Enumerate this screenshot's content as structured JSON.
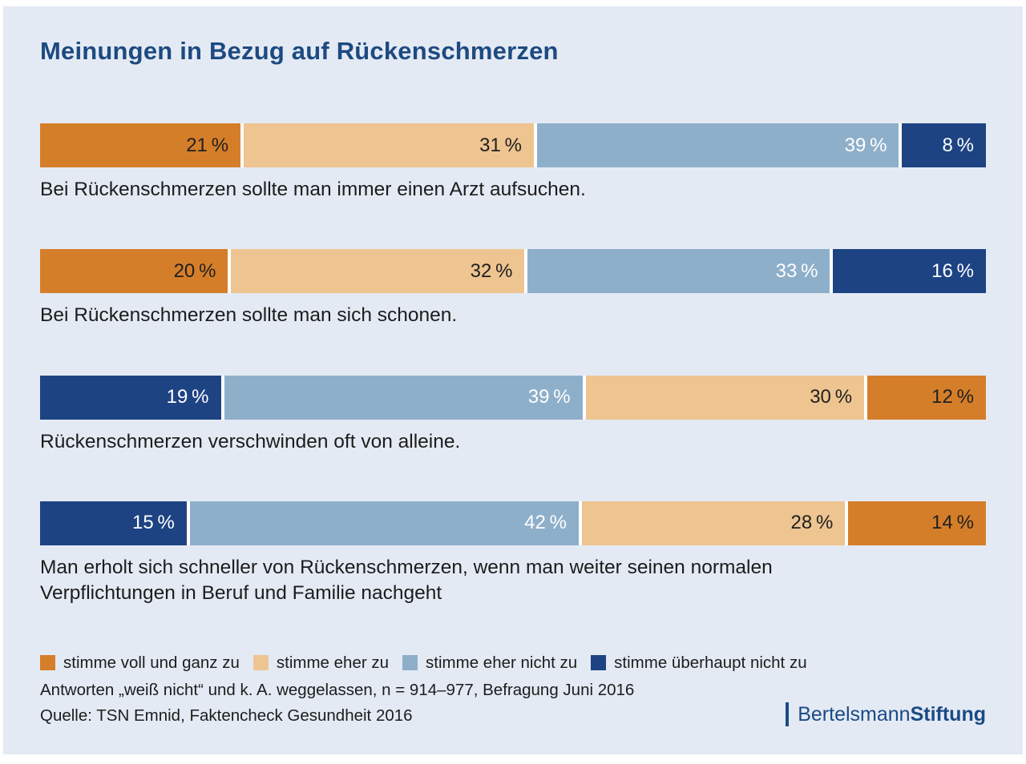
{
  "title": "Meinungen in Bezug auf Rückenschmerzen",
  "colors": {
    "background": "#e4eaf4",
    "page_border": "#ffffff",
    "title_text": "#1d4a80",
    "statement_text": "#1c1c1c",
    "logo_text": "#1b4a84",
    "agree_full": "#d57e29",
    "agree_some": "#eec491",
    "disagree_some": "#8eafca",
    "disagree_full": "#1d4383"
  },
  "chart_data": {
    "type": "bar",
    "variant": "horizontal-stacked-100",
    "unit": "%",
    "title": "Meinungen in Bezug auf Rückenschmerzen",
    "legend_position": "bottom",
    "legend": [
      {
        "label": "stimme voll und ganz zu",
        "color": "#d57e29",
        "value_text_color": "#1f1f1f"
      },
      {
        "label": "stimme eher zu",
        "color": "#eec491",
        "value_text_color": "#1f1f1f"
      },
      {
        "label": "stimme eher nicht zu",
        "color": "#8eafca",
        "value_text_color": "#ffffff"
      },
      {
        "label": "stimme überhaupt nicht zu",
        "color": "#1d4383",
        "value_text_color": "#ffffff"
      }
    ],
    "rows": [
      {
        "statement": "Bei Rückenschmerzen sollte man immer einen Arzt aufsuchen.",
        "segments": [
          {
            "category": "stimme voll und ganz zu",
            "value": 21
          },
          {
            "category": "stimme eher zu",
            "value": 31
          },
          {
            "category": "stimme eher nicht zu",
            "value": 39
          },
          {
            "category": "stimme überhaupt nicht zu",
            "value": 8
          }
        ]
      },
      {
        "statement": "Bei Rückenschmerzen sollte man sich schonen.",
        "segments": [
          {
            "category": "stimme voll und ganz zu",
            "value": 20
          },
          {
            "category": "stimme eher zu",
            "value": 32
          },
          {
            "category": "stimme eher nicht zu",
            "value": 33
          },
          {
            "category": "stimme überhaupt nicht zu",
            "value": 16
          }
        ]
      },
      {
        "statement": "Rückenschmerzen verschwinden oft von alleine.",
        "segments": [
          {
            "category": "stimme überhaupt nicht zu",
            "value": 19
          },
          {
            "category": "stimme eher nicht zu",
            "value": 39
          },
          {
            "category": "stimme eher zu",
            "value": 30
          },
          {
            "category": "stimme voll und ganz zu",
            "value": 12
          }
        ]
      },
      {
        "statement": "Man erholt sich schneller von Rückenschmerzen, wenn man weiter seinen normalen Verpflichtungen in Beruf und Familie nachgeht",
        "segments": [
          {
            "category": "stimme überhaupt nicht zu",
            "value": 15
          },
          {
            "category": "stimme eher nicht zu",
            "value": 42
          },
          {
            "category": "stimme eher zu",
            "value": 28
          },
          {
            "category": "stimme voll und ganz zu",
            "value": 14
          }
        ]
      }
    ]
  },
  "footer": {
    "note": "Antworten „weiß nicht“ und k. A. weggelassen, n = 914–977, Befragung Juni 2016",
    "source": "Quelle: TSN Emnid, Faktencheck Gesundheit 2016"
  },
  "logo": {
    "part_light": "Bertelsmann",
    "part_bold": "Stiftung"
  }
}
